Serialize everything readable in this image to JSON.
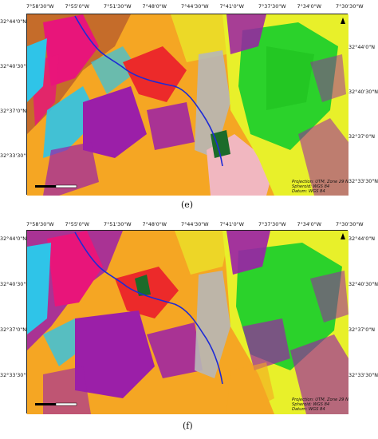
{
  "top_ticks": [
    "7°58'30\"W",
    "7°55'0\"W",
    "7°51'30\"W",
    "7°48'0\"W",
    "7°44'30\"W",
    "7°41'0\"W",
    "7°37'30\"W",
    "7°34'0\"W",
    "7°30'30\"W"
  ],
  "left_ticks": [
    "32°44'0\"N",
    "32°40'30\"N",
    "32°37'0\"N",
    "32°33'30\"N"
  ],
  "right_ticks": [
    "32°44'0\"N",
    "32°40'30\"N",
    "32°37'0\"N",
    "32°33'30\"N"
  ],
  "info_lines": [
    "Projection: UTM, Zone 29 N",
    "Spheroid: WGS 84",
    "Datum: WGS 84"
  ],
  "panels": [
    {
      "caption": "(e)"
    },
    {
      "caption": "(f)"
    }
  ],
  "colors": {
    "orange": "#f5a623",
    "green": "#2bd22b",
    "yellow": "#e8f02a",
    "purple": "#9b1fa8",
    "magenta": "#e8157a",
    "cyan": "#2fc4e8",
    "brown": "#a0522d",
    "red": "#ec2a2a",
    "pink": "#f1b7c0",
    "darkgreen": "#1c6b2a",
    "grey": "#b7b7b7",
    "river": "#1e2bd6"
  }
}
